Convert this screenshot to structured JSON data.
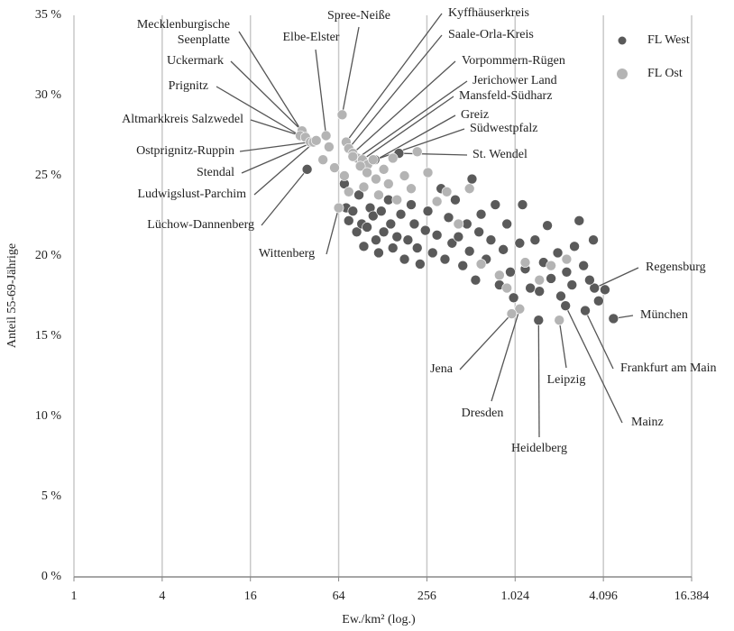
{
  "chart_data": {
    "type": "scatter",
    "x_label": "Ew./km² (log.)",
    "y_label": "Anteil 55-69-Jährige",
    "log_x": true,
    "grid": true,
    "legend": "upper right",
    "xlim": [
      1,
      16384
    ],
    "xticks": [
      1,
      4,
      16,
      64,
      256,
      {
        "value": 1024,
        "label": "1.024"
      },
      {
        "value": 4096,
        "label": "4.096"
      },
      {
        "value": 16384,
        "label": "16.384"
      }
    ],
    "ylim": [
      0,
      35
    ],
    "yticks": [
      {
        "value": 0,
        "label": "0 %"
      },
      {
        "value": 5,
        "label": "5 %"
      },
      {
        "value": 10,
        "label": "10 %"
      },
      {
        "value": 15,
        "label": "15 %"
      },
      {
        "value": 20,
        "label": "20 %"
      },
      {
        "value": 25,
        "label": "25 %"
      },
      {
        "value": 30,
        "label": "30 %"
      },
      {
        "value": 35,
        "label": "35 %"
      }
    ],
    "series": [
      {
        "name": "FL West",
        "color": "#5a5a5a",
        "labels": [
          "Lüchow-Dannenberg",
          "Südwestpfalz",
          "St. Wendel",
          "Regensburg",
          "München",
          "Frankfurt am Main",
          "Mainz",
          "Heidelberg",
          null,
          null,
          null,
          null,
          null,
          null,
          null,
          null,
          null,
          null,
          null,
          null,
          null,
          null,
          null,
          null,
          null,
          null,
          null,
          null,
          null,
          null,
          null,
          null,
          null,
          null,
          null,
          null,
          null,
          null,
          null,
          null,
          null,
          null,
          null,
          null,
          null,
          null,
          null,
          null,
          null,
          null,
          null,
          null,
          null,
          null,
          null,
          null,
          null,
          null,
          null,
          null,
          null,
          null,
          null,
          null,
          null,
          null,
          null,
          null,
          null,
          null,
          null,
          null,
          null,
          null,
          null,
          null,
          null,
          null
        ],
        "x": [
          39,
          113,
          165,
          3560,
          4800,
          3080,
          2260,
          1480,
          70,
          72,
          75,
          80,
          85,
          88,
          92,
          95,
          100,
          105,
          110,
          115,
          120,
          125,
          130,
          140,
          145,
          150,
          160,
          170,
          180,
          190,
          200,
          210,
          220,
          230,
          250,
          260,
          280,
          300,
          320,
          340,
          360,
          380,
          400,
          420,
          450,
          480,
          500,
          520,
          550,
          580,
          600,
          650,
          700,
          750,
          800,
          850,
          900,
          950,
          1000,
          1100,
          1150,
          1200,
          1300,
          1400,
          1500,
          1600,
          1700,
          1800,
          2000,
          2100,
          2300,
          2500,
          2600,
          2800,
          3000,
          3300,
          3500,
          3800,
          4200
        ],
        "values": [
          25.4,
          26,
          26.4,
          18,
          16.1,
          16.6,
          16.9,
          16,
          24.5,
          23,
          22.2,
          22.8,
          21.5,
          23.8,
          22,
          20.6,
          21.8,
          23,
          22.5,
          21,
          20.2,
          22.8,
          21.5,
          23.5,
          22,
          20.5,
          21.2,
          22.6,
          19.8,
          21,
          23.2,
          22,
          20.5,
          19.5,
          21.6,
          22.8,
          20.2,
          21.3,
          24.2,
          19.8,
          22.4,
          20.8,
          23.5,
          21.2,
          19.4,
          22,
          20.3,
          24.8,
          18.5,
          21.5,
          22.6,
          19.8,
          21,
          23.2,
          18.2,
          20.4,
          22,
          19,
          17.4,
          20.8,
          23.2,
          19.2,
          18,
          21,
          17.8,
          19.6,
          21.9,
          18.6,
          20.2,
          17.5,
          19,
          18.2,
          20.6,
          22.2,
          19.4,
          18.5,
          21,
          17.2,
          17.9
        ]
      },
      {
        "name": "FL Ost",
        "color": "#b4b4b4",
        "labels": [
          "Mecklenburgische Seenplatte",
          "Spree-Neiße",
          "Elbe-Elster",
          "Uckermark",
          "Prignitz",
          "Altmarkkreis Salzwedel",
          "Ostprignitz-Ruppin",
          "Stendal",
          "Ludwigslust-Parchim",
          "Wittenberg",
          "Kyffhäuserkreis",
          "Saale-Orla-Kreis",
          "Vorpommern-Rügen",
          "Jerichower Land",
          "Mansfeld-Südharz",
          "Greiz",
          "Leipzig",
          "Dresden",
          "Jena",
          null,
          null,
          null,
          null,
          null,
          null,
          null,
          null,
          null,
          null,
          null,
          null,
          null,
          null,
          null,
          null,
          null,
          null,
          null,
          null,
          null,
          null,
          null,
          null,
          null,
          null,
          null,
          null,
          null,
          null,
          null
        ],
        "x": [
          36.8,
          67.6,
          52.5,
          36,
          35,
          38,
          41,
          43,
          45,
          64,
          72,
          75,
          80,
          86,
          93,
          101,
          2048,
          1100,
          970,
          50,
          55,
          60,
          70,
          75,
          80,
          90,
          95,
          100,
          110,
          115,
          120,
          130,
          140,
          150,
          160,
          180,
          200,
          220,
          260,
          300,
          350,
          420,
          500,
          600,
          800,
          900,
          1200,
          1500,
          1800,
          2300
        ],
        "values": [
          27.6,
          28.8,
          27.5,
          27.8,
          27.5,
          27.4,
          27.1,
          27.1,
          27.2,
          23,
          27.1,
          26.7,
          26.4,
          26.1,
          26,
          25.7,
          16,
          16.7,
          16.4,
          26,
          26.8,
          25.5,
          25,
          24,
          26.2,
          25.6,
          24.3,
          25.2,
          26,
          24.8,
          23.8,
          25.4,
          24.5,
          26.1,
          23.5,
          25,
          24.2,
          26.5,
          25.2,
          23.4,
          24,
          22,
          24.2,
          19.5,
          18.8,
          18,
          19.6,
          18.5,
          19.4,
          19.8
        ]
      }
    ]
  }
}
